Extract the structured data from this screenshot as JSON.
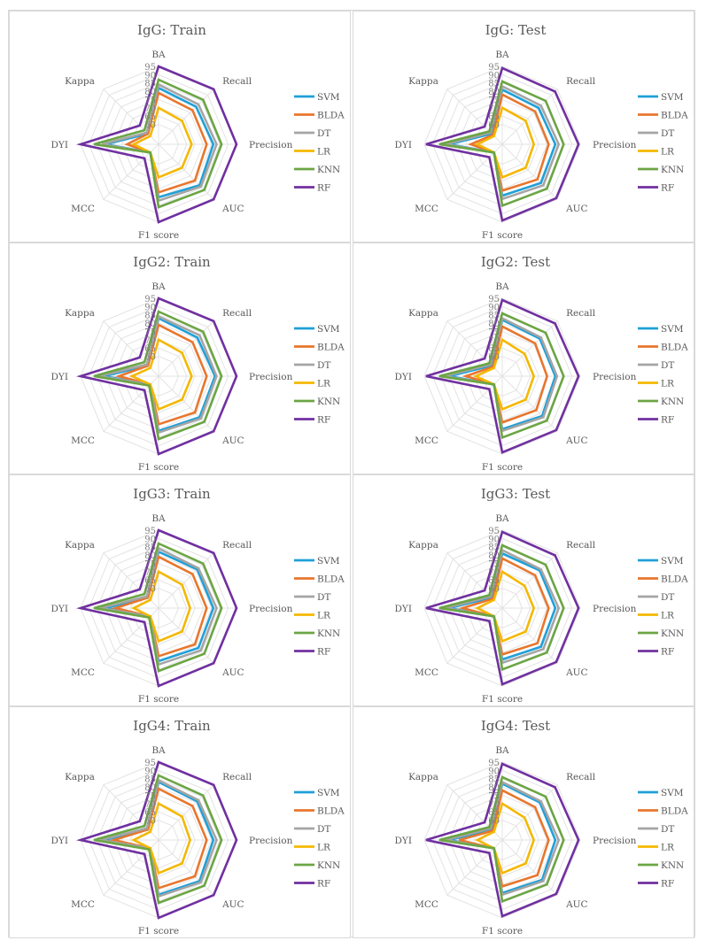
{
  "chart_data": [
    {
      "type": "radar",
      "title": "IgG: Train",
      "axes": [
        "BA",
        "Recall",
        "Precision",
        "AUC",
        "F1 score",
        "MCC",
        "DYI",
        "Kappa"
      ],
      "r_ticks": [
        "60",
        "65",
        "70",
        "75",
        "80",
        "85",
        "90",
        "95"
      ],
      "rlim": [
        60,
        95
      ],
      "series": [
        {
          "name": "SVM",
          "color": "#1fa0d8",
          "values": [
            82,
            80,
            81,
            83,
            80,
            55,
            80,
            57
          ]
        },
        {
          "name": "BLDA",
          "color": "#e8762d",
          "values": [
            79,
            77,
            77,
            79,
            77,
            55,
            67,
            57
          ]
        },
        {
          "name": "DT",
          "color": "#a5a5a5",
          "values": [
            84,
            82,
            83,
            84,
            82,
            55,
            82,
            58
          ]
        },
        {
          "name": "LR",
          "color": "#f4b800",
          "values": [
            70,
            68,
            68,
            68,
            68,
            55,
            63,
            55
          ]
        },
        {
          "name": "KNN",
          "color": "#6ba544",
          "values": [
            87,
            86,
            86,
            87,
            86,
            55,
            87,
            60
          ]
        },
        {
          "name": "RF",
          "color": "#7030a0",
          "values": [
            95,
            95,
            95,
            95,
            95,
            60,
            95,
            64
          ]
        }
      ]
    },
    {
      "type": "radar",
      "title": "IgG: Test",
      "axes": [
        "BA",
        "Recall",
        "Precision",
        "AUC",
        "F1 score",
        "MCC",
        "DYI",
        "Kappa"
      ],
      "r_ticks": [
        "60",
        "65",
        "70",
        "75",
        "80",
        "85",
        "90",
        "95"
      ],
      "rlim": [
        60,
        95
      ],
      "series": [
        {
          "name": "SVM",
          "color": "#1fa0d8",
          "values": [
            81,
            79,
            80,
            81,
            79,
            55,
            80,
            57
          ]
        },
        {
          "name": "BLDA",
          "color": "#e8762d",
          "values": [
            78,
            76,
            76,
            78,
            76,
            55,
            67,
            56
          ]
        },
        {
          "name": "DT",
          "color": "#a5a5a5",
          "values": [
            83,
            81,
            82,
            83,
            81,
            55,
            82,
            58
          ]
        },
        {
          "name": "LR",
          "color": "#f4b800",
          "values": [
            70,
            68,
            67,
            68,
            68,
            55,
            63,
            55
          ]
        },
        {
          "name": "KNN",
          "color": "#6ba544",
          "values": [
            86,
            85,
            85,
            86,
            85,
            55,
            86,
            59
          ]
        },
        {
          "name": "RF",
          "color": "#7030a0",
          "values": [
            94,
            93,
            94,
            94,
            94,
            59,
            94,
            63
          ]
        }
      ]
    },
    {
      "type": "radar",
      "title": "IgG2: Train",
      "axes": [
        "BA",
        "Recall",
        "Precision",
        "AUC",
        "F1 score",
        "MCC",
        "DYI",
        "Kappa"
      ],
      "r_ticks": [
        "60",
        "65",
        "70",
        "75",
        "80",
        "85",
        "90",
        "95"
      ],
      "rlim": [
        60,
        95
      ],
      "series": [
        {
          "name": "SVM",
          "color": "#1fa0d8",
          "values": [
            83,
            81,
            82,
            83,
            81,
            55,
            81,
            57
          ]
        },
        {
          "name": "BLDA",
          "color": "#e8762d",
          "values": [
            79,
            77,
            77,
            79,
            77,
            55,
            72,
            57
          ]
        },
        {
          "name": "DT",
          "color": "#a5a5a5",
          "values": [
            84,
            83,
            83,
            84,
            82,
            55,
            84,
            58
          ]
        },
        {
          "name": "LR",
          "color": "#f4b800",
          "values": [
            70,
            68,
            68,
            68,
            68,
            55,
            64,
            55
          ]
        },
        {
          "name": "KNN",
          "color": "#6ba544",
          "values": [
            87,
            86,
            86,
            87,
            86,
            56,
            87,
            60
          ]
        },
        {
          "name": "RF",
          "color": "#7030a0",
          "values": [
            95,
            95,
            95,
            95,
            95,
            60,
            95,
            64
          ]
        }
      ]
    },
    {
      "type": "radar",
      "title": "IgG2: Test",
      "axes": [
        "BA",
        "Recall",
        "Precision",
        "AUC",
        "F1 score",
        "MCC",
        "DYI",
        "Kappa"
      ],
      "r_ticks": [
        "60",
        "65",
        "70",
        "75",
        "80",
        "85",
        "90",
        "95"
      ],
      "rlim": [
        60,
        95
      ],
      "series": [
        {
          "name": "SVM",
          "color": "#1fa0d8",
          "values": [
            82,
            80,
            80,
            82,
            80,
            55,
            80,
            57
          ]
        },
        {
          "name": "BLDA",
          "color": "#e8762d",
          "values": [
            78,
            76,
            75,
            77,
            76,
            55,
            70,
            56
          ]
        },
        {
          "name": "DT",
          "color": "#a5a5a5",
          "values": [
            83,
            81,
            81,
            83,
            81,
            55,
            83,
            58
          ]
        },
        {
          "name": "LR",
          "color": "#f4b800",
          "values": [
            70,
            67,
            67,
            68,
            68,
            55,
            64,
            55
          ]
        },
        {
          "name": "KNN",
          "color": "#6ba544",
          "values": [
            86,
            85,
            85,
            86,
            85,
            55,
            86,
            59
          ]
        },
        {
          "name": "RF",
          "color": "#7030a0",
          "values": [
            94,
            93,
            94,
            94,
            94,
            59,
            94,
            63
          ]
        }
      ]
    },
    {
      "type": "radar",
      "title": "IgG3: Train",
      "axes": [
        "BA",
        "Recall",
        "Precision",
        "AUC",
        "F1 score",
        "MCC",
        "DYI",
        "Kappa"
      ],
      "r_ticks": [
        "60",
        "65",
        "70",
        "75",
        "80",
        "85",
        "90",
        "95"
      ],
      "rlim": [
        60,
        95
      ],
      "series": [
        {
          "name": "SVM",
          "color": "#1fa0d8",
          "values": [
            82,
            81,
            81,
            82,
            80,
            55,
            80,
            57
          ]
        },
        {
          "name": "BLDA",
          "color": "#e8762d",
          "values": [
            79,
            77,
            77,
            79,
            77,
            55,
            74,
            57
          ]
        },
        {
          "name": "DT",
          "color": "#a5a5a5",
          "values": [
            84,
            82,
            83,
            84,
            82,
            55,
            83,
            58
          ]
        },
        {
          "name": "LR",
          "color": "#f4b800",
          "values": [
            70,
            68,
            67,
            68,
            68,
            55,
            63,
            55
          ]
        },
        {
          "name": "KNN",
          "color": "#6ba544",
          "values": [
            87,
            86,
            86,
            87,
            86,
            56,
            87,
            60
          ]
        },
        {
          "name": "RF",
          "color": "#7030a0",
          "values": [
            95,
            95,
            95,
            95,
            95,
            60,
            95,
            64
          ]
        }
      ]
    },
    {
      "type": "radar",
      "title": "IgG3: Test",
      "axes": [
        "BA",
        "Recall",
        "Precision",
        "AUC",
        "F1 score",
        "MCC",
        "DYI",
        "Kappa"
      ],
      "r_ticks": [
        "60",
        "65",
        "70",
        "75",
        "80",
        "85",
        "90",
        "95"
      ],
      "rlim": [
        60,
        95
      ],
      "series": [
        {
          "name": "SVM",
          "color": "#1fa0d8",
          "values": [
            81,
            80,
            80,
            81,
            79,
            55,
            80,
            57
          ]
        },
        {
          "name": "BLDA",
          "color": "#e8762d",
          "values": [
            78,
            76,
            76,
            78,
            76,
            55,
            72,
            56
          ]
        },
        {
          "name": "DT",
          "color": "#a5a5a5",
          "values": [
            83,
            81,
            82,
            83,
            81,
            55,
            82,
            58
          ]
        },
        {
          "name": "LR",
          "color": "#f4b800",
          "values": [
            70,
            67,
            67,
            68,
            68,
            55,
            63,
            55
          ]
        },
        {
          "name": "KNN",
          "color": "#6ba544",
          "values": [
            86,
            85,
            85,
            86,
            85,
            55,
            86,
            59
          ]
        },
        {
          "name": "RF",
          "color": "#7030a0",
          "values": [
            94,
            93,
            94,
            94,
            94,
            59,
            94,
            63
          ]
        }
      ]
    },
    {
      "type": "radar",
      "title": "IgG4: Train",
      "axes": [
        "BA",
        "Recall",
        "Precision",
        "AUC",
        "F1 score",
        "MCC",
        "DYI",
        "Kappa"
      ],
      "r_ticks": [
        "60",
        "65",
        "70",
        "75",
        "80",
        "85",
        "90",
        "95"
      ],
      "rlim": [
        60,
        95
      ],
      "series": [
        {
          "name": "SVM",
          "color": "#1fa0d8",
          "values": [
            83,
            81,
            81,
            83,
            81,
            55,
            81,
            57
          ]
        },
        {
          "name": "BLDA",
          "color": "#e8762d",
          "values": [
            79,
            77,
            77,
            79,
            77,
            55,
            75,
            57
          ]
        },
        {
          "name": "DT",
          "color": "#a5a5a5",
          "values": [
            84,
            82,
            83,
            84,
            82,
            55,
            83,
            58
          ]
        },
        {
          "name": "LR",
          "color": "#f4b800",
          "values": [
            70,
            68,
            67,
            68,
            68,
            55,
            63,
            55
          ]
        },
        {
          "name": "KNN",
          "color": "#6ba544",
          "values": [
            87,
            86,
            86,
            87,
            86,
            56,
            87,
            60
          ]
        },
        {
          "name": "RF",
          "color": "#7030a0",
          "values": [
            95,
            95,
            95,
            95,
            95,
            60,
            95,
            64
          ]
        }
      ]
    },
    {
      "type": "radar",
      "title": "IgG4: Test",
      "axes": [
        "BA",
        "Recall",
        "Precision",
        "AUC",
        "F1 score",
        "MCC",
        "DYI",
        "Kappa"
      ],
      "r_ticks": [
        "60",
        "65",
        "70",
        "75",
        "80",
        "85",
        "90",
        "95"
      ],
      "rlim": [
        60,
        95
      ],
      "series": [
        {
          "name": "SVM",
          "color": "#1fa0d8",
          "values": [
            82,
            80,
            80,
            82,
            80,
            55,
            80,
            57
          ]
        },
        {
          "name": "BLDA",
          "color": "#e8762d",
          "values": [
            78,
            76,
            76,
            78,
            76,
            55,
            74,
            56
          ]
        },
        {
          "name": "DT",
          "color": "#a5a5a5",
          "values": [
            83,
            81,
            82,
            83,
            81,
            55,
            82,
            58
          ]
        },
        {
          "name": "LR",
          "color": "#f4b800",
          "values": [
            70,
            67,
            67,
            68,
            68,
            55,
            63,
            55
          ]
        },
        {
          "name": "KNN",
          "color": "#6ba544",
          "values": [
            86,
            85,
            85,
            86,
            85,
            55,
            86,
            59
          ]
        },
        {
          "name": "RF",
          "color": "#7030a0",
          "values": [
            94,
            93,
            94,
            94,
            94,
            59,
            94,
            63
          ]
        }
      ]
    }
  ]
}
